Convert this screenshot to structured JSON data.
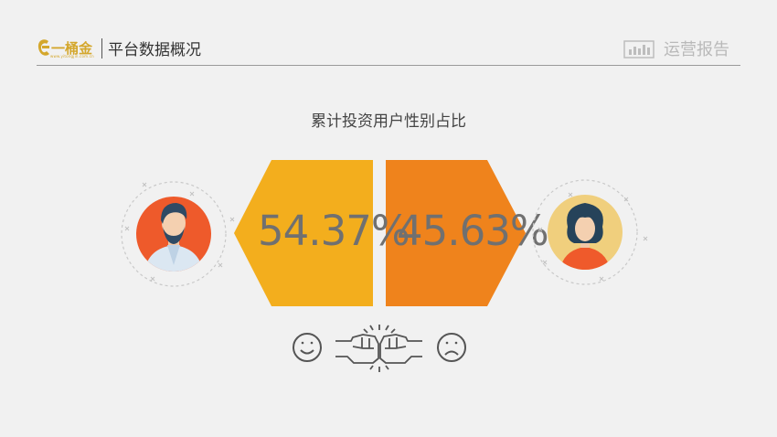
{
  "header": {
    "logo_text": "一桶金",
    "logo_url": "www.yitongjin.com.cn",
    "title": "平台数据概况",
    "report_label": "运营报告"
  },
  "main": {
    "title": "累计投资用户性别占比",
    "male": {
      "percent": "54.37%",
      "color": "#f3ae1d"
    },
    "female": {
      "percent": "45.63%",
      "color": "#ef831c"
    }
  },
  "colors": {
    "male_avatar_bg": "#ee5a2b",
    "female_avatar_bg": "#f0cf7d",
    "icon_line": "#555555"
  },
  "icons": {
    "left": "smiley-face-icon",
    "center": "fist-bump-icon",
    "right": "sad-face-icon"
  }
}
